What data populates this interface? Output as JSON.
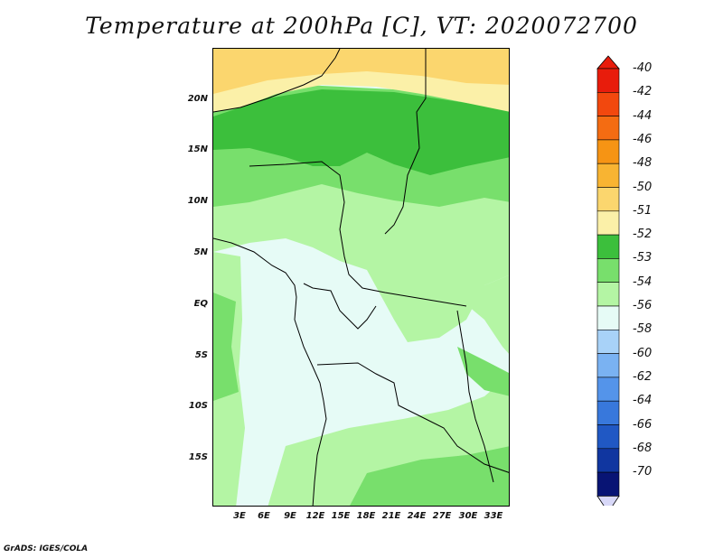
{
  "title": "Temperature at 200hPa [C], VT: 2020072700",
  "footer": "GrADS: IGES/COLA",
  "map": {
    "lat_labels": [
      "20N",
      "15N",
      "10N",
      "5N",
      "EQ",
      "5S",
      "10S",
      "15S"
    ],
    "lon_labels": [
      "3E",
      "6E",
      "9E",
      "12E",
      "15E",
      "18E",
      "21E",
      "24E",
      "27E",
      "30E",
      "33E"
    ],
    "fill_colors": {
      "band_48_50": "#fbd66e",
      "band_50_51": "#fbf0a8",
      "band_51_52": "#3cbf3c",
      "band_52_53": "#78df6c",
      "band_53_54": "#b4f5a4",
      "band_54_56": "#e6fbf6"
    }
  },
  "colorbar": {
    "labels": [
      "-40",
      "-42",
      "-44",
      "-46",
      "-48",
      "-50",
      "-51",
      "-52",
      "-53",
      "-54",
      "-56",
      "-58",
      "-60",
      "-62",
      "-64",
      "-66",
      "-68",
      "-70"
    ],
    "colors": [
      "#e81c0c",
      "#f2480e",
      "#f46c12",
      "#f69414",
      "#f8b432",
      "#fbd66e",
      "#fbf0a8",
      "#3cbf3c",
      "#78df6c",
      "#b4f5a4",
      "#e6fbf6",
      "#a8d2f8",
      "#7ab2f2",
      "#5494ea",
      "#3878dc",
      "#2058c4",
      "#1036a0",
      "#081474"
    ],
    "end_low_color": "#d8d8f8"
  }
}
